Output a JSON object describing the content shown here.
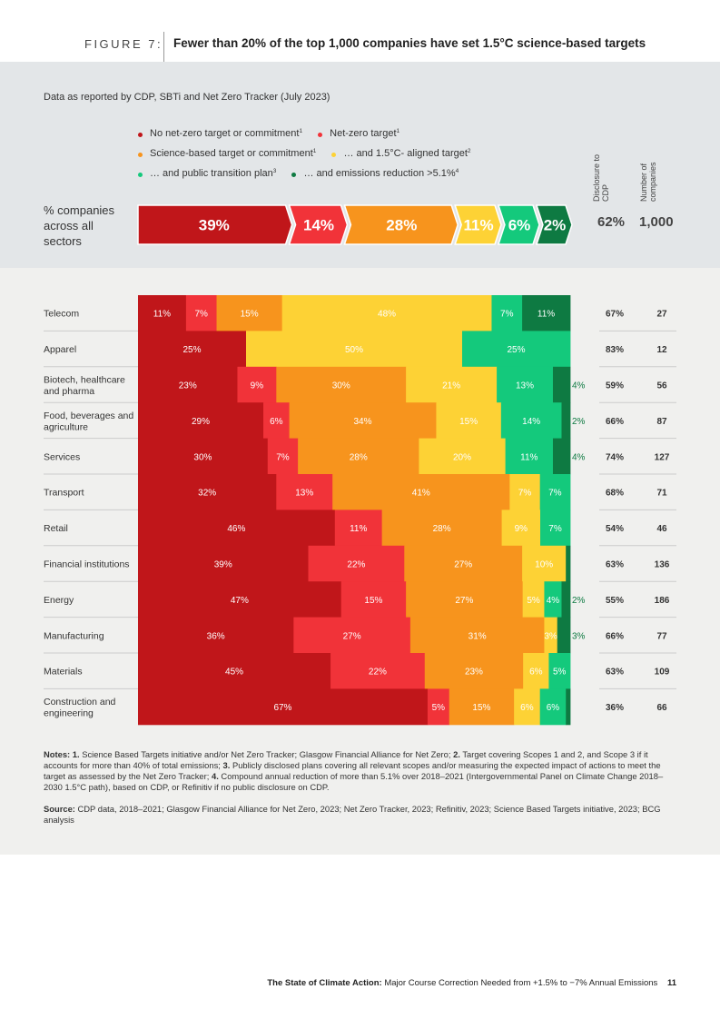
{
  "figure": {
    "label": "FIGURE 7:",
    "title": "Fewer than 20% of the top 1,000 companies have set 1.5°C science-based targets",
    "source_line": "Data as reported by CDP, SBTi and Net Zero Tracker (July 2023)"
  },
  "legend": {
    "rows": [
      [
        {
          "label": "No net-zero target or commitment",
          "sup": "1",
          "color": "#c0161a"
        },
        {
          "label": "Net-zero target",
          "sup": "1",
          "color": "#f13339"
        }
      ],
      [
        {
          "label": "Science-based target or commitment",
          "sup": "1",
          "color": "#f7941d"
        },
        {
          "label": "… and 1.5°C- aligned target",
          "sup": "2",
          "color": "#fdd235"
        }
      ],
      [
        {
          "label": "… and public transition plan",
          "sup": "3",
          "color": "#14c97c"
        },
        {
          "label": "… and emissions reduction >5.1%",
          "sup": "4",
          "color": "#0e7a42"
        }
      ]
    ]
  },
  "columns": {
    "disclosure": "Disclosure to CDP",
    "number": "Number of companies"
  },
  "overall": {
    "label": "% companies across all sectors",
    "disclosure": "62%",
    "number": "1,000"
  },
  "chart_data": {
    "type": "bar",
    "orientation": "horizontal",
    "stacked": true,
    "title": "Fewer than 20% of the top 1,000 companies have set 1.5°C science-based targets",
    "series_names": [
      "No net-zero target or commitment",
      "Net-zero target",
      "Science-based target or commitment",
      "… and 1.5°C- aligned target",
      "… and public transition plan",
      "… and emissions reduction >5.1%"
    ],
    "colors": [
      "#c0161a",
      "#f13339",
      "#f7941d",
      "#fdd235",
      "#14c97c",
      "#0e7a42"
    ],
    "overall": [
      39,
      14,
      28,
      11,
      6,
      2
    ],
    "categories": [
      "Telecom",
      "Apparel",
      "Biotech, healthcare and pharma",
      "Food, beverages and agriculture",
      "Services",
      "Transport",
      "Retail",
      "Financial institutions",
      "Energy",
      "Manufacturing",
      "Materials",
      "Construction and engineering"
    ],
    "values": [
      [
        11,
        7,
        15,
        48,
        7,
        11
      ],
      [
        25,
        0,
        0,
        50,
        25,
        0
      ],
      [
        23,
        9,
        30,
        21,
        13,
        4
      ],
      [
        29,
        6,
        34,
        15,
        14,
        2
      ],
      [
        30,
        7,
        28,
        20,
        11,
        4
      ],
      [
        32,
        13,
        41,
        7,
        7,
        0
      ],
      [
        46,
        11,
        28,
        9,
        7,
        0
      ],
      [
        39,
        22,
        27,
        10,
        0,
        1
      ],
      [
        47,
        15,
        27,
        5,
        4,
        2
      ],
      [
        36,
        27,
        31,
        3,
        0,
        3
      ],
      [
        45,
        22,
        23,
        6,
        5,
        0
      ],
      [
        67,
        5,
        15,
        6,
        6,
        1
      ]
    ],
    "labels": [
      [
        "11%",
        "7%",
        "15%",
        "48%",
        "7%",
        "11%"
      ],
      [
        "25%",
        "",
        "",
        "50%",
        "25%",
        ""
      ],
      [
        "23%",
        "9%",
        "30%",
        "21%",
        "13%",
        "4%"
      ],
      [
        "29%",
        "6%",
        "34%",
        "15%",
        "14%",
        "2%"
      ],
      [
        "30%",
        "7%",
        "28%",
        "20%",
        "11%",
        "4%"
      ],
      [
        "32%",
        "13%",
        "41%",
        "7%",
        "7%",
        ""
      ],
      [
        "46%",
        "11%",
        "28%",
        "9%",
        "7%",
        ""
      ],
      [
        "39%",
        "22%",
        "27%",
        "10%",
        "",
        ""
      ],
      [
        "47%",
        "15%",
        "27%",
        "5%",
        "4%",
        "2%"
      ],
      [
        "36%",
        "27%",
        "31%",
        "3%",
        "",
        "3%"
      ],
      [
        "45%",
        "22%",
        "23%",
        "6%",
        "5%",
        ""
      ],
      [
        "67%",
        "5%",
        "15%",
        "6%",
        "6%",
        ""
      ]
    ],
    "disclosure_to_cdp": [
      "67%",
      "83%",
      "59%",
      "66%",
      "74%",
      "68%",
      "54%",
      "63%",
      "55%",
      "66%",
      "63%",
      "36%"
    ],
    "number_of_companies": [
      "27",
      "12",
      "56",
      "87",
      "127",
      "71",
      "46",
      "136",
      "186",
      "77",
      "109",
      "66"
    ],
    "xlim": [
      0,
      100
    ]
  },
  "notes": {
    "label": "Notes:",
    "items": [
      {
        "n": "1.",
        "text": "Science Based Targets initiative and/or Net Zero Tracker; Glasgow Financial Alliance for Net Zero;"
      },
      {
        "n": "2.",
        "text": "Target covering Scopes 1 and 2, and Scope 3 if it accounts for more than 40% of total emissions;"
      },
      {
        "n": "3.",
        "text": "Publicly disclosed plans covering all relevant scopes and/or measuring the expected impact of actions to meet the target as assessed by the Net Zero Tracker;"
      },
      {
        "n": "4.",
        "text": "Compound annual reduction of more than 5.1% over 2018–2021 (Intergovernmental Panel on Climate Change 2018–2030 1.5°C path), based on CDP, or Refinitiv if no public disclosure on CDP."
      }
    ]
  },
  "source": {
    "label": "Source:",
    "text": "CDP data, 2018–2021; Glasgow Financial Alliance for Net Zero, 2023; Net Zero Tracker, 2023; Refinitiv, 2023; Science Based Targets initiative, 2023; BCG analysis"
  },
  "footer": {
    "doc_title": "The State of Climate Action:",
    "doc_subtitle": "Major Course Correction Needed from +1.5% to −7% Annual Emissions",
    "page": "11"
  }
}
